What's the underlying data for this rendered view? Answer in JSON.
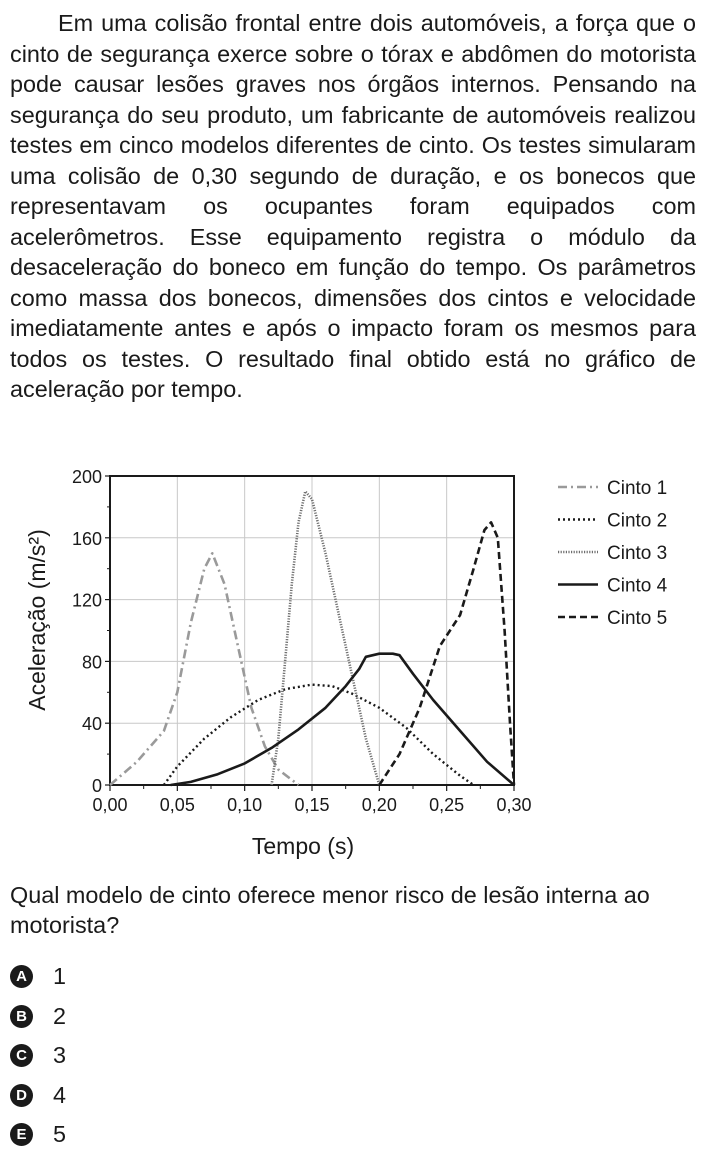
{
  "question": {
    "paragraph": "Em uma colisão frontal entre dois automóveis, a força que o cinto de segurança exerce sobre o tórax e abdômen do motorista pode causar lesões graves nos órgãos internos. Pensando na segurança do seu produto, um fabricante de automóveis realizou testes em cinco modelos diferentes de cinto. Os testes simularam uma colisão de 0,30 segundo de duração, e os bonecos que representavam os ocupantes foram equipados com acelerômetros. Esse equipamento registra o módulo da desaceleração do boneco em função do tempo. Os parâmetros como massa dos bonecos, dimensões dos cintos e velocidade imediatamente antes e após o impacto foram os mesmos para todos os testes. O resultado final obtido está no gráfico de aceleração por tempo.",
    "prompt": "Qual modelo de cinto oferece menor risco de lesão interna ao motorista?",
    "options": [
      {
        "letter": "A",
        "text": "1"
      },
      {
        "letter": "B",
        "text": "2"
      },
      {
        "letter": "C",
        "text": "3"
      },
      {
        "letter": "D",
        "text": "4"
      },
      {
        "letter": "E",
        "text": "5"
      }
    ]
  },
  "chart_data": {
    "type": "line",
    "xlabel": "Tempo (s)",
    "ylabel": "Aceleração (m/s²)",
    "xlim": [
      0,
      0.3
    ],
    "ylim": [
      0,
      200
    ],
    "x_ticks": [
      "0,00",
      "0,05",
      "0,10",
      "0,15",
      "0,20",
      "0,25",
      "0,30"
    ],
    "y_ticks": [
      "0",
      "40",
      "80",
      "120",
      "160",
      "200"
    ],
    "grid": true,
    "legend_position": "right",
    "series": [
      {
        "name": "Cinto 1",
        "style": "dash-dot",
        "color": "#9a9a9a",
        "points": [
          [
            0.0,
            0
          ],
          [
            0.02,
            15
          ],
          [
            0.04,
            35
          ],
          [
            0.05,
            60
          ],
          [
            0.06,
            105
          ],
          [
            0.07,
            140
          ],
          [
            0.076,
            150
          ],
          [
            0.085,
            130
          ],
          [
            0.095,
            90
          ],
          [
            0.105,
            50
          ],
          [
            0.115,
            25
          ],
          [
            0.125,
            10
          ],
          [
            0.14,
            0
          ]
        ]
      },
      {
        "name": "Cinto 2",
        "style": "dotted",
        "color": "#1a1a1a",
        "points": [
          [
            0.04,
            0
          ],
          [
            0.05,
            12
          ],
          [
            0.07,
            30
          ],
          [
            0.09,
            44
          ],
          [
            0.11,
            55
          ],
          [
            0.13,
            62
          ],
          [
            0.15,
            65
          ],
          [
            0.165,
            64
          ],
          [
            0.18,
            59
          ],
          [
            0.2,
            50
          ],
          [
            0.22,
            37
          ],
          [
            0.24,
            20
          ],
          [
            0.26,
            6
          ],
          [
            0.27,
            0
          ]
        ]
      },
      {
        "name": "Cinto 3",
        "style": "fine-dotted",
        "color": "#6e6e6e",
        "points": [
          [
            0.12,
            0
          ],
          [
            0.125,
            30
          ],
          [
            0.13,
            80
          ],
          [
            0.135,
            130
          ],
          [
            0.14,
            170
          ],
          [
            0.145,
            190
          ],
          [
            0.15,
            185
          ],
          [
            0.16,
            150
          ],
          [
            0.17,
            110
          ],
          [
            0.18,
            70
          ],
          [
            0.19,
            30
          ],
          [
            0.2,
            0
          ]
        ]
      },
      {
        "name": "Cinto 4",
        "style": "solid",
        "color": "#1a1a1a",
        "points": [
          [
            0.045,
            0
          ],
          [
            0.06,
            2
          ],
          [
            0.08,
            7
          ],
          [
            0.1,
            14
          ],
          [
            0.12,
            24
          ],
          [
            0.14,
            36
          ],
          [
            0.16,
            50
          ],
          [
            0.175,
            64
          ],
          [
            0.185,
            75
          ],
          [
            0.19,
            83
          ],
          [
            0.2,
            85
          ],
          [
            0.21,
            85
          ],
          [
            0.215,
            84
          ],
          [
            0.225,
            72
          ],
          [
            0.24,
            55
          ],
          [
            0.26,
            35
          ],
          [
            0.28,
            15
          ],
          [
            0.3,
            0
          ]
        ]
      },
      {
        "name": "Cinto 5",
        "style": "dashed",
        "color": "#1a1a1a",
        "points": [
          [
            0.2,
            0
          ],
          [
            0.215,
            20
          ],
          [
            0.23,
            50
          ],
          [
            0.245,
            90
          ],
          [
            0.26,
            110
          ],
          [
            0.27,
            140
          ],
          [
            0.278,
            165
          ],
          [
            0.283,
            170
          ],
          [
            0.288,
            160
          ],
          [
            0.293,
            100
          ],
          [
            0.297,
            40
          ],
          [
            0.3,
            0
          ]
        ]
      }
    ]
  }
}
